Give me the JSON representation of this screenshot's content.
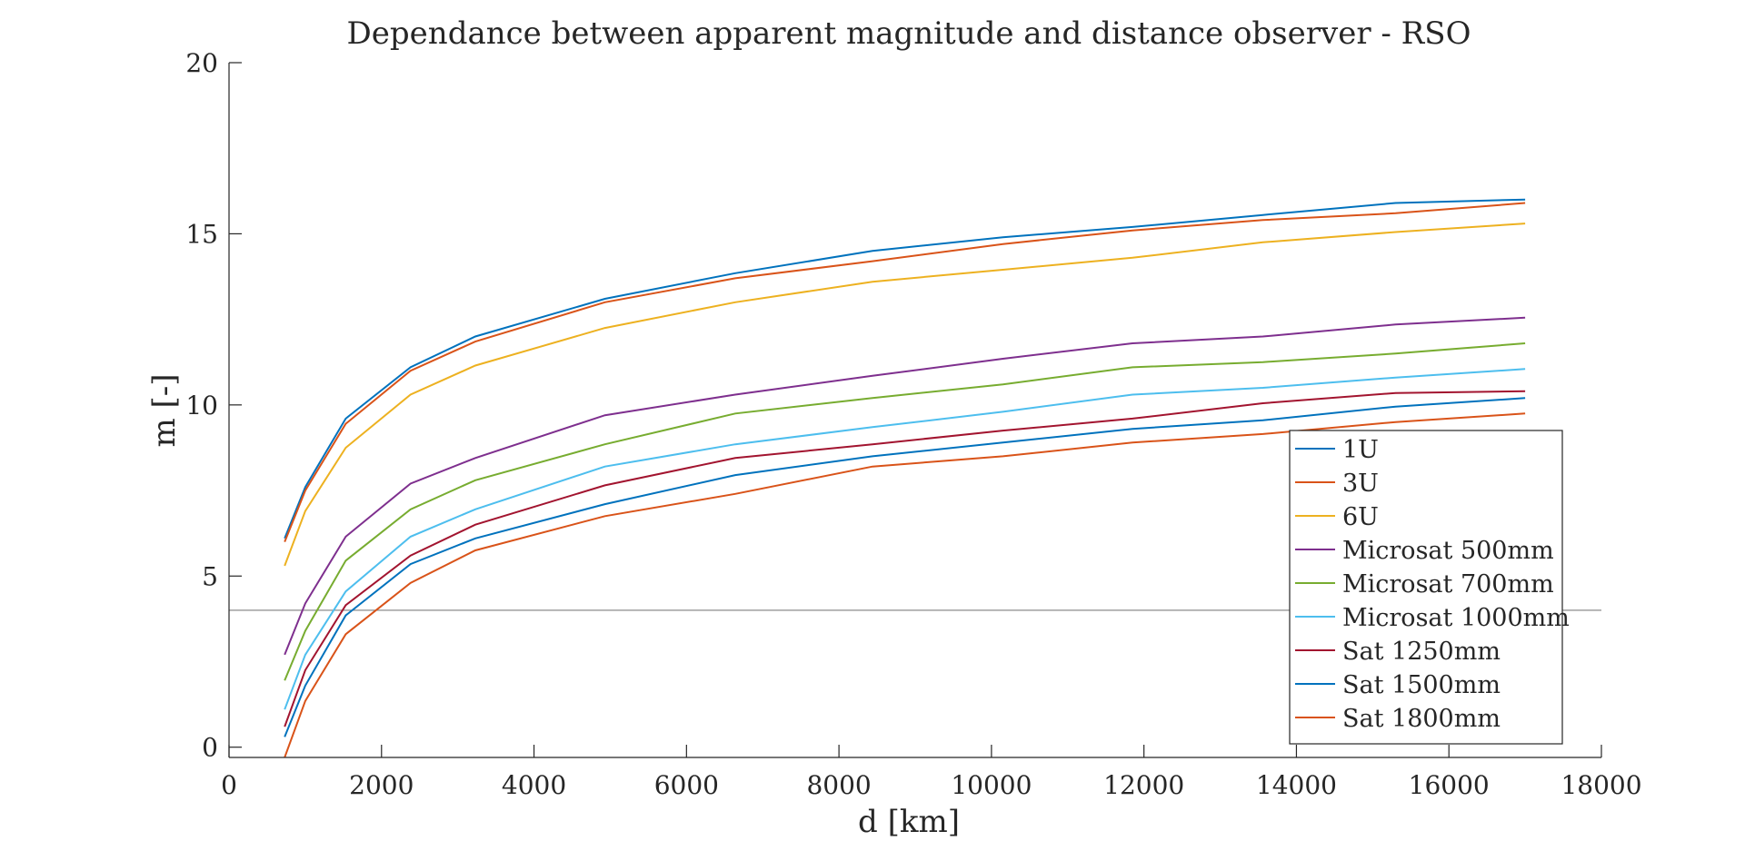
{
  "chart_data": {
    "type": "line",
    "title": "Dependance between apparent magnitude and distance observer - RSO",
    "xlabel": "d [km]",
    "ylabel": "m [-]",
    "xlim": [
      0,
      18000
    ],
    "ylim": [
      -0.3,
      20
    ],
    "xticks": [
      0,
      2000,
      4000,
      6000,
      8000,
      10000,
      12000,
      14000,
      16000,
      18000
    ],
    "yticks": [
      0,
      5,
      10,
      15,
      20
    ],
    "grid": false,
    "legend_position": "lower-right",
    "reference_line": {
      "y": 4,
      "color": "#7f7f7f"
    },
    "x": [
      730,
      1000,
      1530,
      2380,
      3230,
      4930,
      6640,
      8440,
      10150,
      11850,
      13560,
      15300,
      17000
    ],
    "series": [
      {
        "name": "1U",
        "color": "#0072BD",
        "values": [
          6.1,
          7.6,
          9.6,
          11.1,
          12.0,
          13.1,
          13.85,
          14.5,
          14.9,
          15.2,
          15.55,
          15.9,
          16.0
        ]
      },
      {
        "name": "3U",
        "color": "#D95319",
        "values": [
          6.0,
          7.5,
          9.45,
          11.0,
          11.85,
          13.0,
          13.7,
          14.2,
          14.7,
          15.1,
          15.4,
          15.6,
          15.9
        ]
      },
      {
        "name": "6U",
        "color": "#EDB120",
        "values": [
          5.3,
          6.9,
          8.75,
          10.3,
          11.15,
          12.25,
          13.0,
          13.6,
          13.95,
          14.3,
          14.75,
          15.05,
          15.3
        ]
      },
      {
        "name": "Microsat 500mm",
        "color": "#7E2F8E",
        "values": [
          2.7,
          4.2,
          6.15,
          7.7,
          8.45,
          9.7,
          10.3,
          10.85,
          11.35,
          11.8,
          12.0,
          12.35,
          12.55
        ]
      },
      {
        "name": "Microsat 700mm",
        "color": "#77AC30",
        "values": [
          1.95,
          3.4,
          5.45,
          6.95,
          7.8,
          8.85,
          9.75,
          10.2,
          10.6,
          11.1,
          11.25,
          11.5,
          11.8
        ]
      },
      {
        "name": "Microsat 1000mm",
        "color": "#4DBEEE",
        "values": [
          1.1,
          2.7,
          4.55,
          6.15,
          6.95,
          8.2,
          8.85,
          9.35,
          9.8,
          10.3,
          10.5,
          10.8,
          11.05
        ]
      },
      {
        "name": "Sat 1250mm",
        "color": "#A2142F",
        "values": [
          0.6,
          2.25,
          4.15,
          5.6,
          6.5,
          7.65,
          8.45,
          8.85,
          9.25,
          9.6,
          10.05,
          10.35,
          10.4
        ]
      },
      {
        "name": "Sat 1500mm",
        "color": "#0072BD",
        "values": [
          0.3,
          1.8,
          3.85,
          5.35,
          6.1,
          7.1,
          7.95,
          8.5,
          8.9,
          9.3,
          9.55,
          9.95,
          10.2
        ]
      },
      {
        "name": "Sat 1800mm",
        "color": "#D95319",
        "values": [
          -0.3,
          1.35,
          3.3,
          4.8,
          5.75,
          6.75,
          7.4,
          8.2,
          8.5,
          8.9,
          9.15,
          9.5,
          9.75
        ]
      }
    ]
  }
}
